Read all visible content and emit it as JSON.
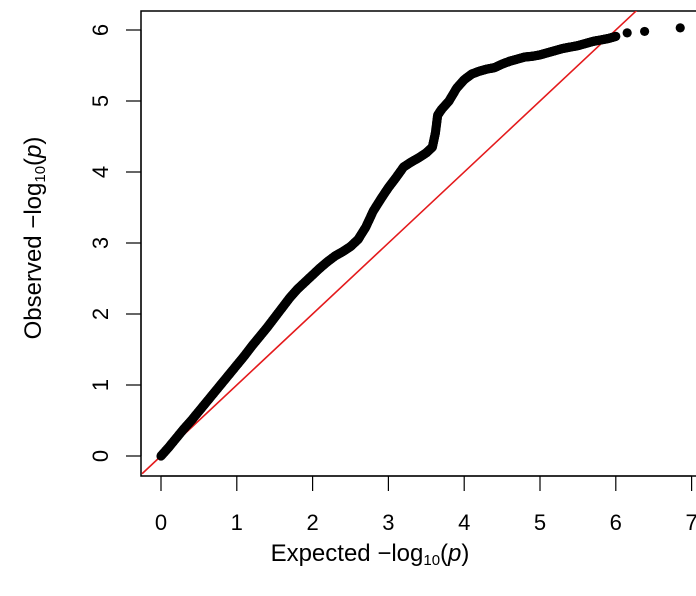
{
  "chart_data": {
    "type": "scatter",
    "title": "",
    "xlabel_prefix": "Expected  −log",
    "ylabel_prefix": "Observed  −log",
    "log_base": "10",
    "p_symbol": "p",
    "xlim": [
      -0.25,
      7.0
    ],
    "ylim": [
      -0.25,
      6.3
    ],
    "xticks": [
      "0",
      "1",
      "2",
      "3",
      "4",
      "5",
      "6",
      "7"
    ],
    "yticks": [
      "0",
      "1",
      "2",
      "3",
      "4",
      "5",
      "6"
    ],
    "reference_line": {
      "slope": 1,
      "intercept": 0,
      "color": "#e41a1c"
    },
    "point_color": "#000000",
    "points": [
      [
        0.0,
        0.0
      ],
      [
        0.1,
        0.12
      ],
      [
        0.2,
        0.25
      ],
      [
        0.3,
        0.38
      ],
      [
        0.4,
        0.5
      ],
      [
        0.5,
        0.63
      ],
      [
        0.6,
        0.76
      ],
      [
        0.7,
        0.89
      ],
      [
        0.8,
        1.02
      ],
      [
        0.9,
        1.15
      ],
      [
        1.0,
        1.28
      ],
      [
        1.1,
        1.41
      ],
      [
        1.2,
        1.55
      ],
      [
        1.3,
        1.68
      ],
      [
        1.4,
        1.81
      ],
      [
        1.5,
        1.95
      ],
      [
        1.6,
        2.09
      ],
      [
        1.7,
        2.23
      ],
      [
        1.8,
        2.35
      ],
      [
        1.9,
        2.45
      ],
      [
        2.0,
        2.55
      ],
      [
        2.1,
        2.65
      ],
      [
        2.2,
        2.74
      ],
      [
        2.3,
        2.82
      ],
      [
        2.4,
        2.88
      ],
      [
        2.5,
        2.95
      ],
      [
        2.6,
        3.05
      ],
      [
        2.7,
        3.22
      ],
      [
        2.8,
        3.45
      ],
      [
        2.9,
        3.62
      ],
      [
        3.0,
        3.78
      ],
      [
        3.1,
        3.92
      ],
      [
        3.2,
        4.07
      ],
      [
        3.3,
        4.14
      ],
      [
        3.4,
        4.2
      ],
      [
        3.5,
        4.27
      ],
      [
        3.58,
        4.35
      ],
      [
        3.62,
        4.55
      ],
      [
        3.65,
        4.8
      ],
      [
        3.7,
        4.88
      ],
      [
        3.8,
        5.0
      ],
      [
        3.9,
        5.18
      ],
      [
        4.0,
        5.3
      ],
      [
        4.1,
        5.38
      ],
      [
        4.2,
        5.42
      ],
      [
        4.3,
        5.45
      ],
      [
        4.4,
        5.47
      ],
      [
        4.5,
        5.52
      ],
      [
        4.6,
        5.56
      ],
      [
        4.7,
        5.59
      ],
      [
        4.8,
        5.62
      ],
      [
        4.9,
        5.63
      ],
      [
        5.0,
        5.65
      ],
      [
        5.1,
        5.68
      ],
      [
        5.2,
        5.71
      ],
      [
        5.3,
        5.74
      ],
      [
        5.4,
        5.76
      ],
      [
        5.5,
        5.78
      ],
      [
        5.6,
        5.81
      ],
      [
        5.7,
        5.84
      ],
      [
        5.8,
        5.86
      ],
      [
        5.9,
        5.88
      ],
      [
        6.0,
        5.91
      ],
      [
        6.15,
        5.96
      ],
      [
        6.38,
        5.98
      ],
      [
        6.85,
        6.03
      ]
    ]
  }
}
